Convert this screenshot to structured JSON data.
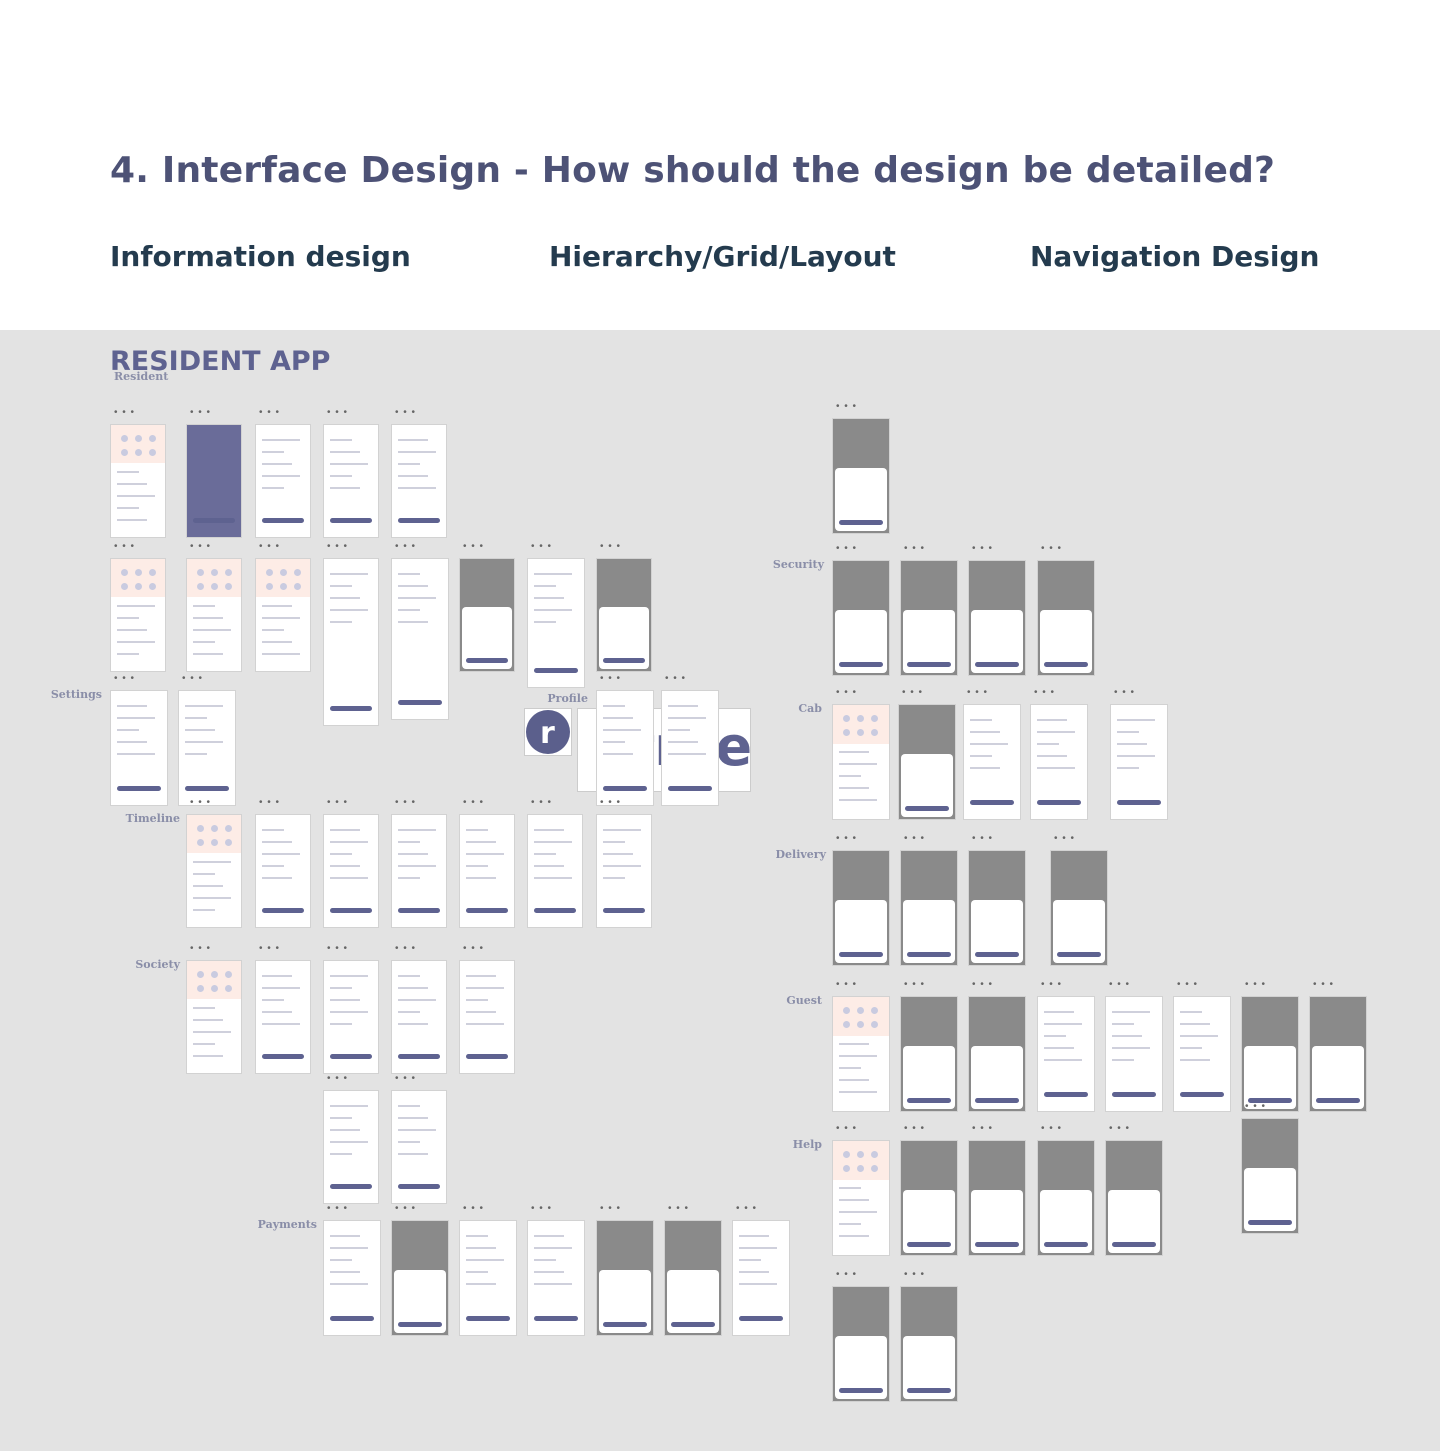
{
  "header": {
    "title": "4. Interface Design - How should the design be detailed?",
    "columns": [
      "Information design",
      "Hierarchy/Grid/Layout",
      "Navigation Design"
    ]
  },
  "board": {
    "title": "RESIDENT APP",
    "subtitle": "Resident",
    "logo_text": "ntree",
    "logo_mark": "r",
    "more_glyph": "• • •",
    "sections": {
      "settings": "Settings",
      "profile": "Profile",
      "timeline": "Timeline",
      "society": "Society",
      "payments": "Payments",
      "security": "Security",
      "cab": "Cab",
      "delivery": "Delivery",
      "guest": "Guest",
      "help": "Help"
    }
  },
  "colors": {
    "title": "#4d5276",
    "subheading": "#243b4e",
    "accent": "#5e6290",
    "board_bg": "#e3e3e3",
    "section_label": "#8a8ea8"
  }
}
